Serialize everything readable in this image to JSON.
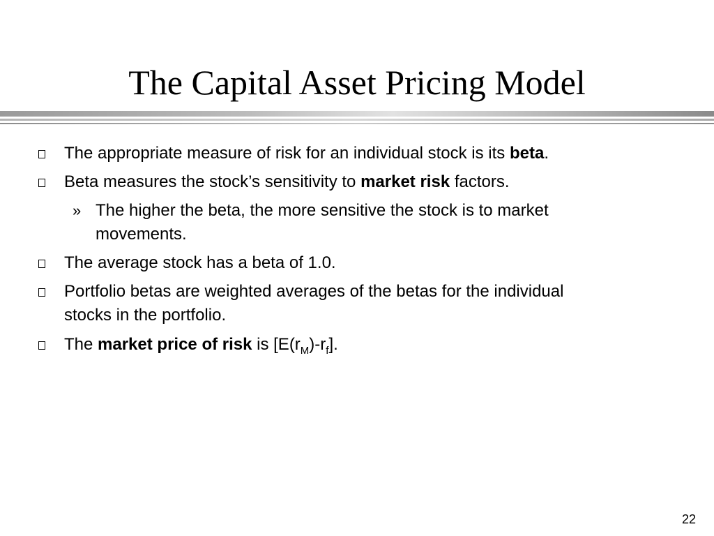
{
  "slide": {
    "title": "The Capital Asset Pricing Model",
    "page_number": "22",
    "bullets": [
      {
        "before": "The appropriate measure of risk for an individual stock is its ",
        "bold": "beta",
        "after": "."
      },
      {
        "before": " Beta measures the stock’s sensitivity to ",
        "bold": "market risk",
        "after": " factors."
      },
      {
        "sub_marker": "»",
        "line1": "The higher the beta, the more sensitive the stock is to market",
        "line2": "movements."
      },
      {
        "text": "The average stock has a beta of 1.0."
      },
      {
        "line1": "Portfolio betas are weighted averages of the betas for the individual",
        "line2": "stocks in the portfolio."
      },
      {
        "before": "The ",
        "bold": "market price of risk",
        "mid": " is [E(r",
        "sub1": "M",
        "mid2": ")-r",
        "sub2": "f",
        "after": "]."
      }
    ]
  }
}
